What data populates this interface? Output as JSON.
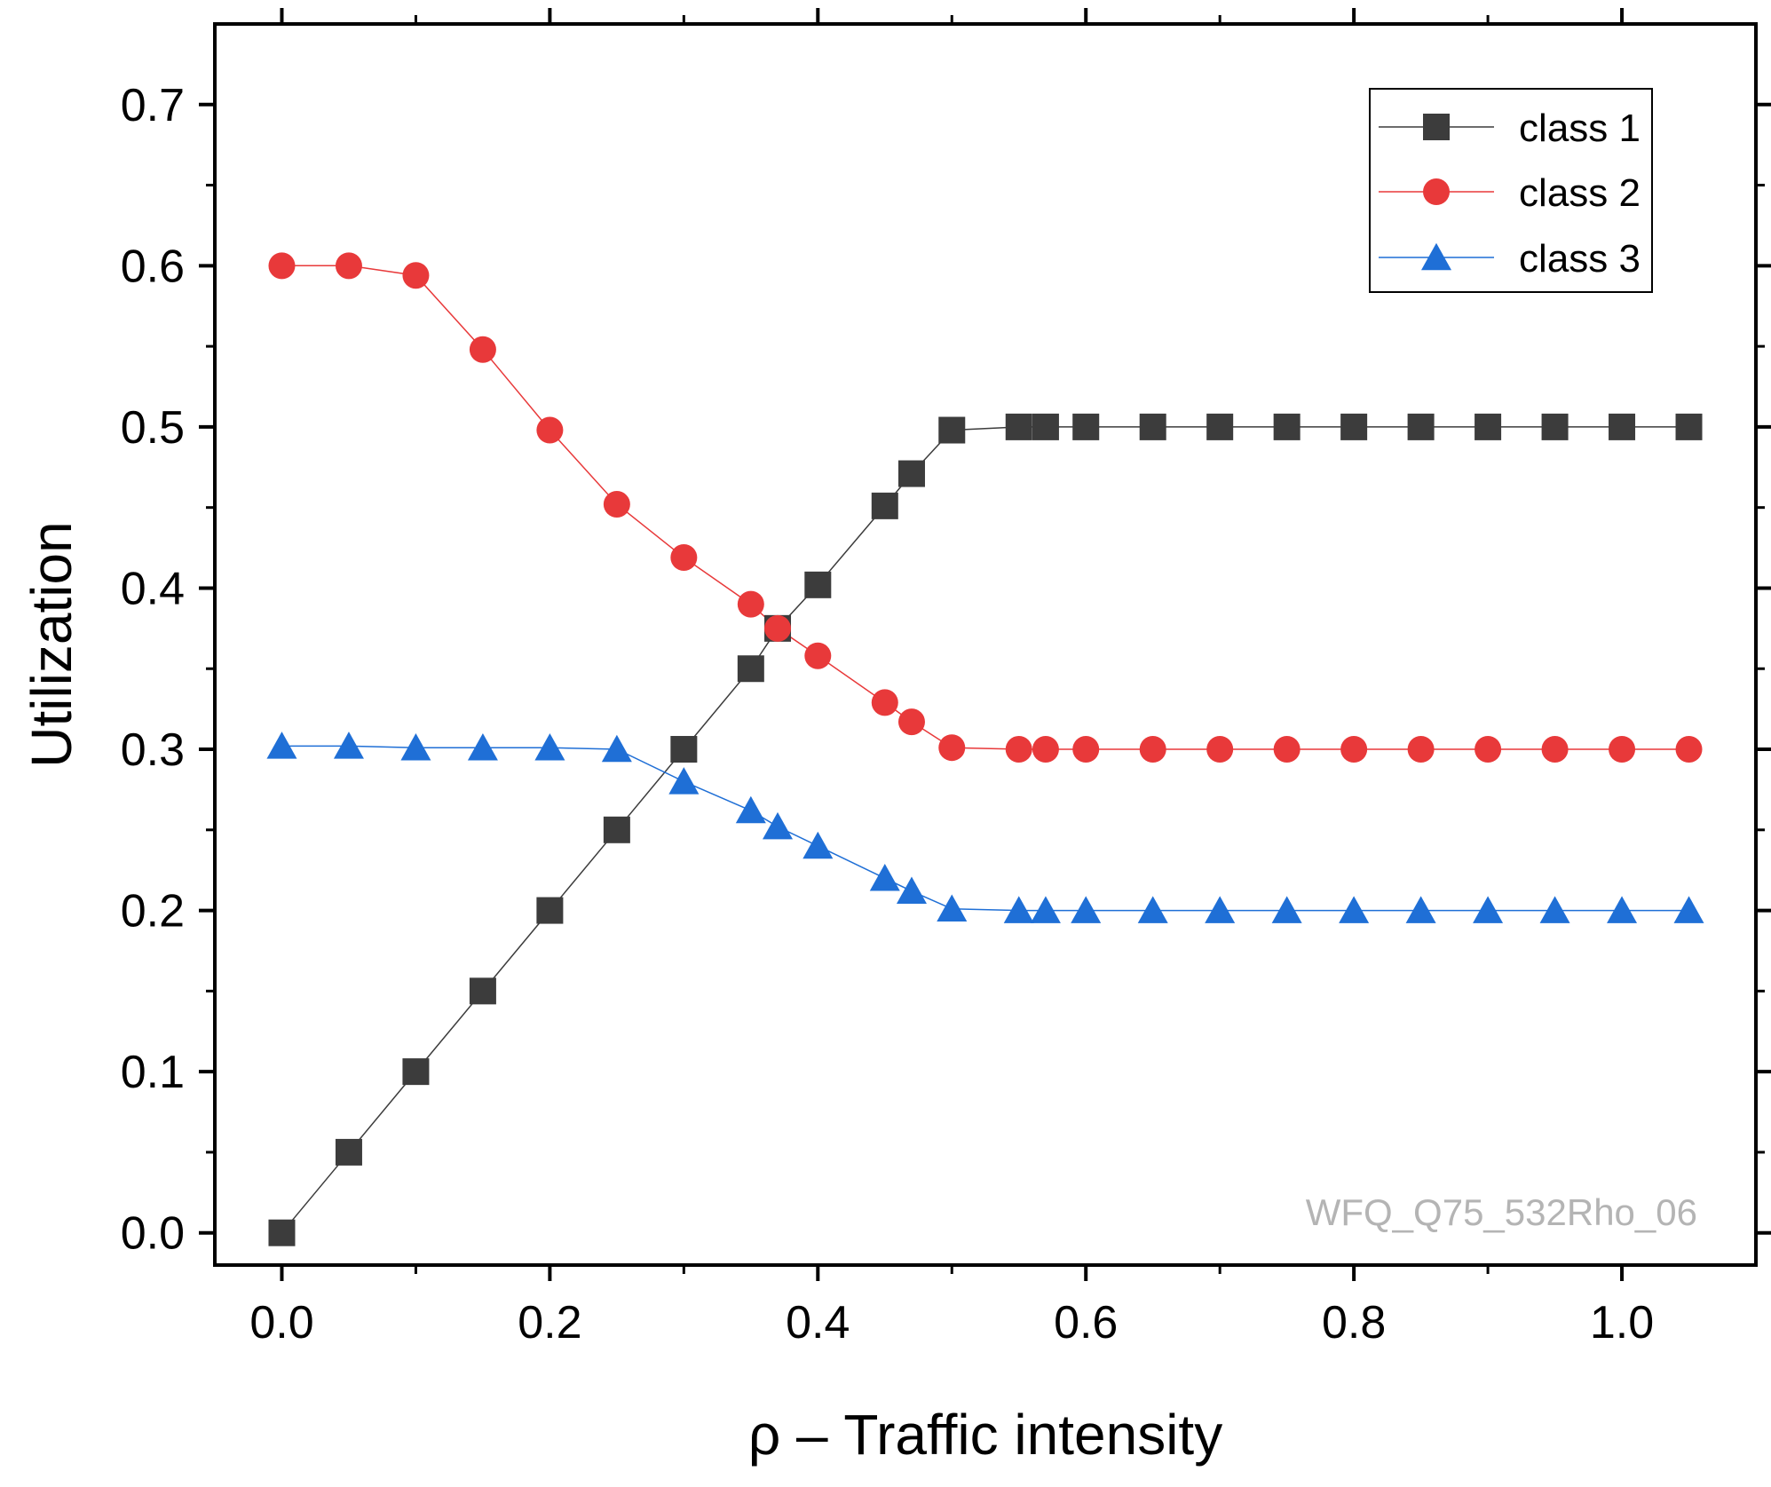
{
  "chart_data": {
    "type": "line",
    "title": "",
    "xlabel": "ρ – Traffic intensity",
    "ylabel": "Utilization",
    "xlim": [
      -0.05,
      1.1
    ],
    "ylim": [
      -0.02,
      0.75
    ],
    "xticks": [
      0.0,
      0.2,
      0.4,
      0.6,
      0.8,
      1.0
    ],
    "xtick_labels": [
      "0.0",
      "0.2",
      "0.4",
      "0.6",
      "0.8",
      "1.0"
    ],
    "yticks": [
      0.0,
      0.1,
      0.2,
      0.3,
      0.4,
      0.5,
      0.6,
      0.7
    ],
    "ytick_labels": [
      "0.0",
      "0.1",
      "0.2",
      "0.3",
      "0.4",
      "0.5",
      "0.6",
      "0.7"
    ],
    "legend_position": "top-right",
    "grid": false,
    "annotation": "WFQ_Q75_532Rho_06",
    "x": [
      0.0,
      0.05,
      0.1,
      0.15,
      0.2,
      0.25,
      0.3,
      0.35,
      0.37,
      0.4,
      0.45,
      0.47,
      0.5,
      0.55,
      0.57,
      0.6,
      0.65,
      0.7,
      0.75,
      0.8,
      0.85,
      0.9,
      0.95,
      1.0,
      1.05
    ],
    "series": [
      {
        "name": "class 1",
        "color": "#3c3c3c",
        "marker": "square",
        "values": [
          0.0,
          0.05,
          0.1,
          0.15,
          0.2,
          0.25,
          0.3,
          0.35,
          0.375,
          0.402,
          0.451,
          0.471,
          0.498,
          0.5,
          0.5,
          0.5,
          0.5,
          0.5,
          0.5,
          0.5,
          0.5,
          0.5,
          0.5,
          0.5,
          0.5
        ]
      },
      {
        "name": "class 2",
        "color": "#e8393a",
        "marker": "circle",
        "values": [
          0.6,
          0.6,
          0.594,
          0.548,
          0.498,
          0.452,
          0.419,
          0.39,
          0.375,
          0.358,
          0.329,
          0.317,
          0.301,
          0.3,
          0.3,
          0.3,
          0.3,
          0.3,
          0.3,
          0.3,
          0.3,
          0.3,
          0.3,
          0.3,
          0.3
        ]
      },
      {
        "name": "class 3",
        "color": "#1f6fd6",
        "marker": "triangle",
        "values": [
          0.302,
          0.302,
          0.301,
          0.301,
          0.301,
          0.3,
          0.28,
          0.262,
          0.252,
          0.24,
          0.22,
          0.212,
          0.201,
          0.2,
          0.2,
          0.2,
          0.2,
          0.2,
          0.2,
          0.2,
          0.2,
          0.2,
          0.2,
          0.2,
          0.2
        ]
      }
    ]
  }
}
